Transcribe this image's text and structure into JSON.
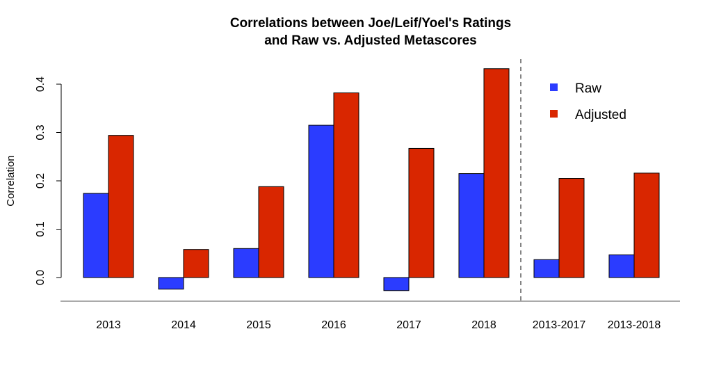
{
  "chart_data": {
    "type": "bar",
    "title": "Correlations between Joe/Leif/Yoel's Ratings\nand Raw vs. Adjusted Metascores",
    "ylabel": "Correlation",
    "xlabel": "",
    "categories": [
      "2013",
      "2014",
      "2015",
      "2016",
      "2017",
      "2018",
      "2013-2017",
      "2013-2018"
    ],
    "series": [
      {
        "name": "Raw",
        "color": "#2b3cff",
        "values": [
          0.174,
          -0.024,
          0.06,
          0.315,
          -0.027,
          0.215,
          0.037,
          0.047
        ]
      },
      {
        "name": "Adjusted",
        "color": "#d92600",
        "values": [
          0.294,
          0.058,
          0.188,
          0.382,
          0.267,
          0.432,
          0.205,
          0.216
        ]
      }
    ],
    "ylim": [
      -0.05,
      0.44
    ],
    "yticks": [
      "0.0",
      "0.1",
      "0.2",
      "0.3",
      "0.4"
    ],
    "separator_after_category": "2018",
    "legend_position": "top-right",
    "grid": false
  }
}
